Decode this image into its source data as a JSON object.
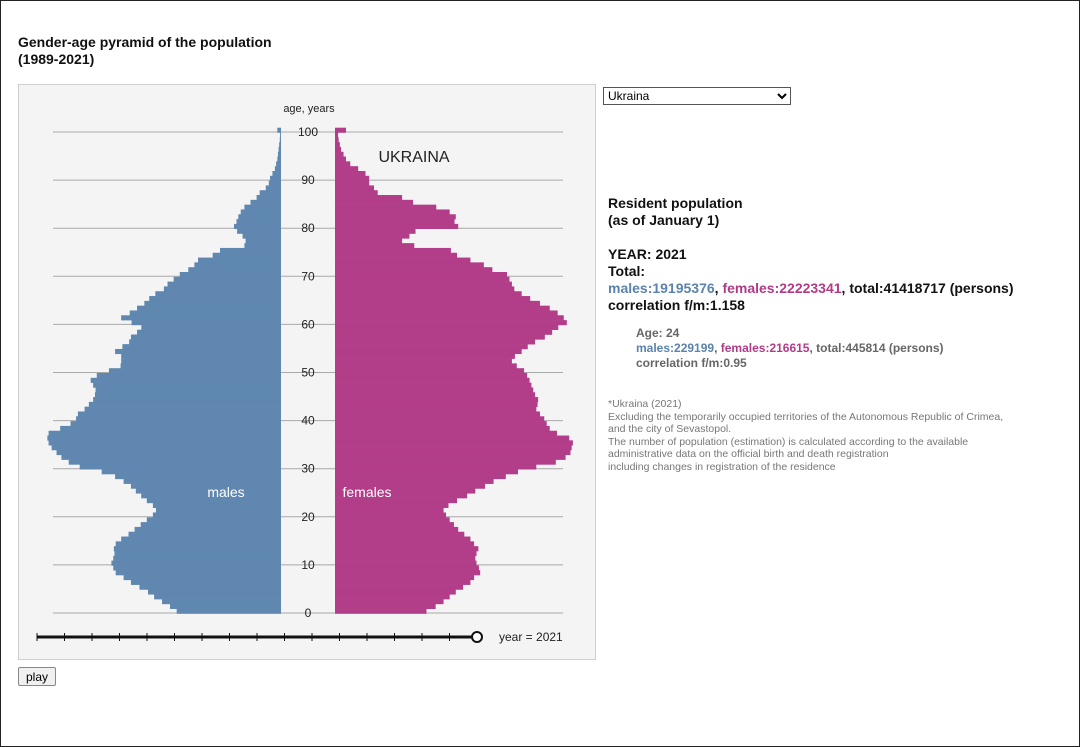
{
  "header": {
    "title_line1": "Gender-age pyramid of the population",
    "title_line2": "(1989-2021)"
  },
  "controls": {
    "region_selected": "Ukraina",
    "play_label": "play",
    "year_label": "year = 2021",
    "slider_value": 1.0
  },
  "info": {
    "heading_line1": "Resident population",
    "heading_line2": "(as of January 1)",
    "year_line": "YEAR: 2021",
    "total_label": "Total:",
    "males": "males:19195376",
    "sep1": ", ",
    "females": "females:22223341",
    "total": ", total:41418717 (persons)",
    "correlation": "correlation f/m:1.158",
    "age": {
      "age_line": "Age: 24",
      "males": "males:229199",
      "sep1": ", ",
      "females": "females:216615",
      "total": ", total:445814 (persons)",
      "correlation": "correlation f/m:0.95"
    },
    "notes": [
      "*Ukraina (2021)",
      "Excluding the temporarily occupied territories of the Autonomous Republic of Crimea,",
      "and the city of Sevastopol.",
      "The number of population (estimation) is calculated according to the available",
      "administrative data on the official birth and death registration",
      "including changes in registration of the residence"
    ]
  },
  "colors": {
    "males": "#5f87b0",
    "females": "#b23d88",
    "grid": "#a8a8a8",
    "panel": "#f4f4f4"
  },
  "chart_data": {
    "type": "bar",
    "orientation": "horizontal-pyramid",
    "y_axis_label": "age, years",
    "country_label": "UKRAINA",
    "males_label": "males",
    "females_label": "females",
    "year": 2021,
    "y_ticks": [
      0,
      10,
      20,
      30,
      40,
      50,
      60,
      70,
      80,
      90,
      100
    ],
    "x_max": 400000,
    "ages": [
      0,
      1,
      2,
      3,
      4,
      5,
      6,
      7,
      8,
      9,
      10,
      11,
      12,
      13,
      14,
      15,
      16,
      17,
      18,
      19,
      20,
      21,
      22,
      23,
      24,
      25,
      26,
      27,
      28,
      29,
      30,
      31,
      32,
      33,
      34,
      35,
      36,
      37,
      38,
      39,
      40,
      41,
      42,
      43,
      44,
      45,
      46,
      47,
      48,
      49,
      50,
      51,
      52,
      53,
      54,
      55,
      56,
      57,
      58,
      59,
      60,
      61,
      62,
      63,
      64,
      65,
      66,
      67,
      68,
      69,
      70,
      71,
      72,
      73,
      74,
      75,
      76,
      77,
      78,
      79,
      80,
      81,
      82,
      83,
      84,
      85,
      86,
      87,
      88,
      89,
      90,
      91,
      92,
      93,
      94,
      95,
      96,
      97,
      98,
      99,
      100
    ],
    "series": [
      {
        "name": "males",
        "values": [
          171000,
          182000,
          195000,
          208000,
          218000,
          232000,
          246000,
          258000,
          271000,
          275000,
          278000,
          275000,
          273000,
          274000,
          271000,
          262000,
          250000,
          240000,
          230000,
          220000,
          210000,
          205000,
          210000,
          220000,
          229199,
          238000,
          246000,
          258000,
          272000,
          294000,
          330000,
          348000,
          360000,
          368000,
          376000,
          381000,
          383000,
          381000,
          362000,
          345000,
          336000,
          333000,
          322000,
          315000,
          308000,
          305000,
          304000,
          308000,
          312000,
          302000,
          282000,
          263000,
          262000,
          262000,
          272000,
          260000,
          249000,
          246000,
          236000,
          229000,
          245000,
          262000,
          248000,
          236000,
          224000,
          216000,
          206000,
          192000,
          186000,
          176000,
          166000,
          152000,
          142000,
          136000,
          112000,
          100000,
          60000,
          58000,
          63000,
          72000,
          77000,
          73000,
          70000,
          66000,
          60000,
          50000,
          40000,
          35000,
          25000,
          20000,
          18000,
          14000,
          10000,
          8000,
          6000,
          5000,
          4000,
          3000,
          2000,
          1500,
          6000
        ]
      },
      {
        "name": "females",
        "values": [
          150000,
          165000,
          178000,
          188000,
          198000,
          210000,
          222000,
          228000,
          238000,
          236000,
          232000,
          230000,
          232000,
          235000,
          228000,
          222000,
          212000,
          202000,
          195000,
          188000,
          182000,
          178000,
          186000,
          200000,
          216615,
          230000,
          246000,
          260000,
          280000,
          300000,
          330000,
          362000,
          378000,
          386000,
          388000,
          390000,
          384000,
          364000,
          352000,
          347000,
          343000,
          336000,
          330000,
          332000,
          333000,
          328000,
          325000,
          322000,
          319000,
          315000,
          310000,
          298000,
          290000,
          295000,
          306000,
          316000,
          328000,
          344000,
          356000,
          366000,
          380000,
          375000,
          365000,
          352000,
          336000,
          320000,
          306000,
          294000,
          290000,
          286000,
          282000,
          258000,
          244000,
          222000,
          200000,
          190000,
          130000,
          110000,
          122000,
          132000,
          202000,
          196000,
          198000,
          188000,
          166000,
          128000,
          110000,
          70000,
          64000,
          56000,
          56000,
          50000,
          38000,
          25000,
          18000,
          14000,
          10000,
          8000,
          6000,
          5000,
          18000
        ]
      }
    ]
  }
}
